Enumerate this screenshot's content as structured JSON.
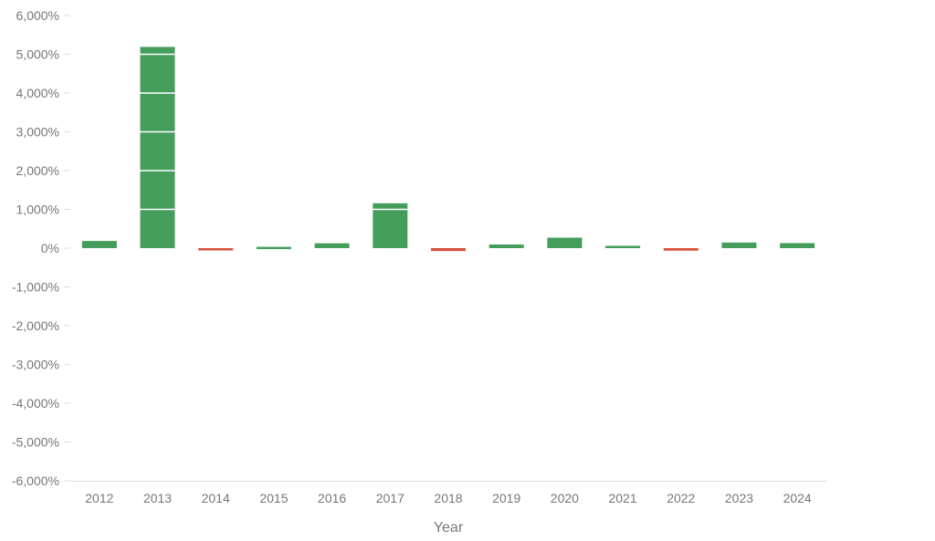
{
  "chart_data": {
    "type": "bar",
    "categories": [
      "2012",
      "2013",
      "2014",
      "2015",
      "2016",
      "2017",
      "2018",
      "2019",
      "2020",
      "2021",
      "2022",
      "2023",
      "2024"
    ],
    "values": [
      186,
      5190,
      -58,
      34,
      125,
      1157,
      -74,
      94,
      270,
      60,
      -65,
      145,
      130
    ],
    "xlabel": "Year",
    "ylabel": "",
    "ylim": [
      -6000,
      6000
    ],
    "yticks": [
      6000,
      5000,
      4000,
      3000,
      2000,
      1000,
      0,
      -1000,
      -2000,
      -3000,
      -4000,
      -5000,
      -6000
    ],
    "ytick_labels": [
      "6,000%",
      "5,000%",
      "4,000%",
      "3,000%",
      "2,000%",
      "1,000%",
      "0%",
      "-1,000%",
      "-2,000%",
      "-3,000%",
      "-4,000%",
      "-5,000%",
      "-6,000%"
    ],
    "grid": false,
    "colors": {
      "positive": "#459d5c",
      "negative": "#d6503a",
      "axis": "#dddddd",
      "tick_text": "#777777"
    }
  }
}
